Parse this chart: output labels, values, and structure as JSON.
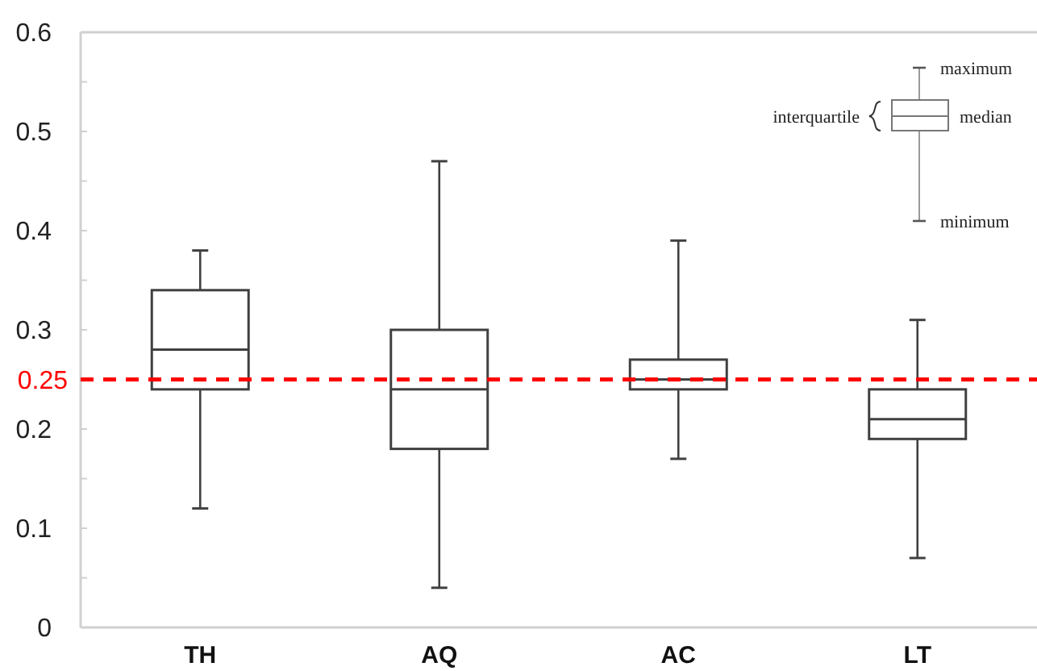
{
  "chart_data": {
    "type": "box",
    "categories": [
      "TH",
      "AQ",
      "AC",
      "LT"
    ],
    "boxes": [
      {
        "low": 0.12,
        "q1": 0.24,
        "median": 0.28,
        "q3": 0.34,
        "high": 0.38
      },
      {
        "low": 0.04,
        "q1": 0.18,
        "median": 0.24,
        "q3": 0.3,
        "high": 0.47
      },
      {
        "low": 0.17,
        "q1": 0.24,
        "median": 0.25,
        "q3": 0.27,
        "high": 0.39
      },
      {
        "low": 0.07,
        "q1": 0.19,
        "median": 0.21,
        "q3": 0.24,
        "high": 0.31
      }
    ],
    "color": "#404040",
    "ylim": [
      0,
      0.6
    ],
    "yticks": [
      0,
      {
        "value": 0.05,
        "label": null
      },
      0.1,
      {
        "value": 0.15,
        "label": null
      },
      0.2,
      0.3,
      {
        "value": 0.35,
        "label": null
      },
      0.4,
      {
        "value": 0.45,
        "label": null
      },
      0.5,
      {
        "value": 0.55,
        "label": null
      },
      0.6
    ],
    "ref_lines": [
      {
        "axis": "y",
        "value": 0.25,
        "label": "0.25",
        "color": "#ff0000",
        "line_style": "dashed"
      }
    ],
    "annotations": [
      "maximum",
      "interquartile",
      "median",
      "minimum"
    ],
    "grid": false
  }
}
